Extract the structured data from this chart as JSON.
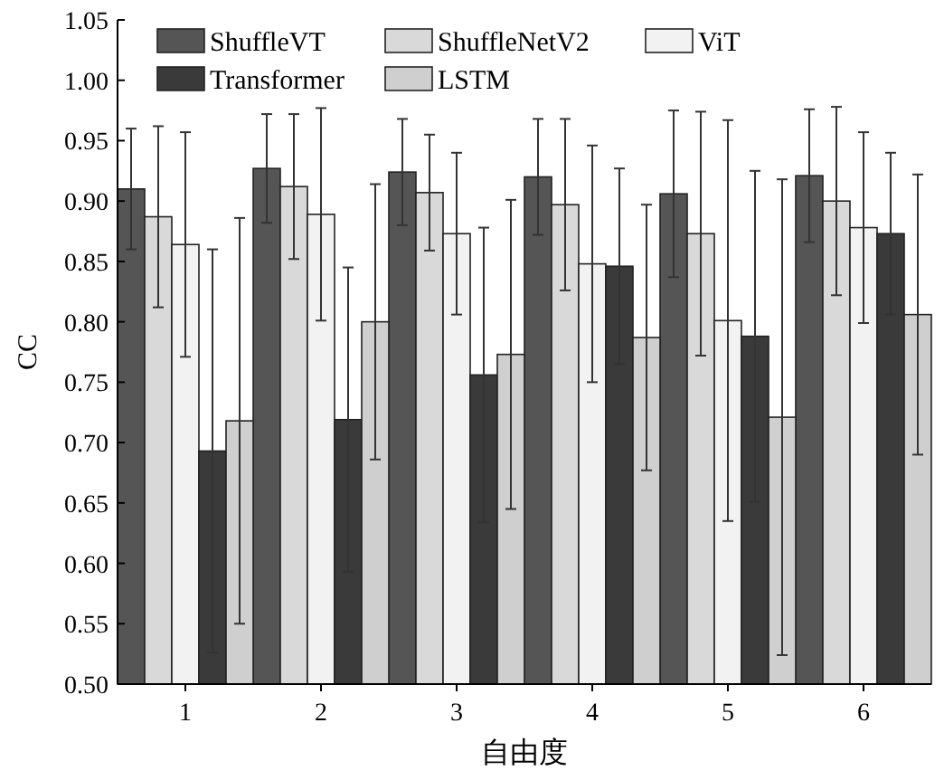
{
  "chart_data": {
    "type": "bar",
    "xlabel": "自由度",
    "ylabel": "CC",
    "categories": [
      "1",
      "2",
      "3",
      "4",
      "5",
      "6"
    ],
    "ylim": [
      0.5,
      1.05
    ],
    "yticks": [
      {
        "value": 0.5,
        "label": "0.50"
      },
      {
        "value": 0.55,
        "label": "0.55"
      },
      {
        "value": 0.6,
        "label": "0.60"
      },
      {
        "value": 0.65,
        "label": "0.65"
      },
      {
        "value": 0.7,
        "label": "0.70"
      },
      {
        "value": 0.75,
        "label": "0.75"
      },
      {
        "value": 0.8,
        "label": "0.80"
      },
      {
        "value": 0.85,
        "label": "0.85"
      },
      {
        "value": 0.9,
        "label": "0.90"
      },
      {
        "value": 0.95,
        "label": "0.95"
      },
      {
        "value": 1.0,
        "label": "1.00"
      },
      {
        "value": 1.05,
        "label": "1.05"
      }
    ],
    "legend": "top",
    "grid": false,
    "series": [
      {
        "name": "ShuffleVT",
        "color": "#555555",
        "values": [
          0.91,
          0.927,
          0.924,
          0.92,
          0.906,
          0.921
        ],
        "errors": [
          0.05,
          0.045,
          0.044,
          0.048,
          0.069,
          0.055
        ]
      },
      {
        "name": "ShuffleNetV2",
        "color": "#d9d9d9",
        "values": [
          0.887,
          0.912,
          0.907,
          0.897,
          0.873,
          0.9
        ],
        "errors": [
          0.075,
          0.06,
          0.048,
          0.071,
          0.101,
          0.078
        ]
      },
      {
        "name": "ViT",
        "color": "#f2f2f2",
        "values": [
          0.864,
          0.889,
          0.873,
          0.848,
          0.801,
          0.878
        ],
        "errors": [
          0.093,
          0.088,
          0.067,
          0.098,
          0.166,
          0.079
        ]
      },
      {
        "name": "Transformer",
        "color": "#3a3a3a",
        "values": [
          0.693,
          0.719,
          0.756,
          0.846,
          0.788,
          0.873
        ],
        "errors": [
          0.167,
          0.126,
          0.122,
          0.081,
          0.137,
          0.067
        ]
      },
      {
        "name": "LSTM",
        "color": "#cfcfcf",
        "values": [
          0.718,
          0.8,
          0.773,
          0.787,
          0.721,
          0.806
        ],
        "errors": [
          0.168,
          0.114,
          0.128,
          0.11,
          0.197,
          0.116
        ]
      }
    ]
  }
}
